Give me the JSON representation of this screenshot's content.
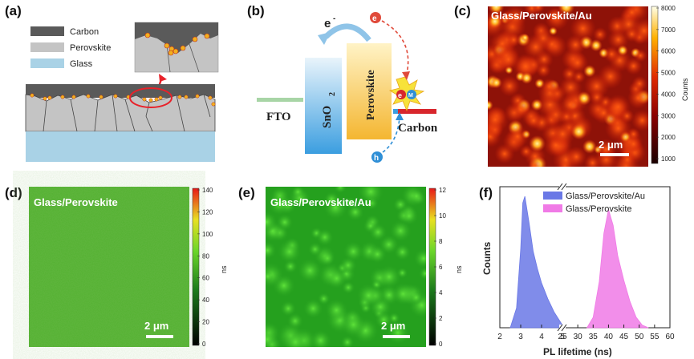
{
  "figure": {
    "panel_labels": [
      "(a)",
      "(b)",
      "(c)",
      "(d)",
      "(e)",
      "(f)"
    ]
  },
  "panel_a": {
    "legend": [
      "Carbon",
      "Perovskite",
      "Glass"
    ],
    "colors": {
      "carbon": "#5a5a5a",
      "perovskite": "#c4c4c4",
      "glass": "#a9d2e6",
      "highlight": "#e8222a"
    }
  },
  "panel_b": {
    "electron_label": "e",
    "electron_sup": "-",
    "fto": "FTO",
    "sno2": "SnO",
    "sno2_sub": "2",
    "perovskite": "Perovskite",
    "carbon": "Carbon",
    "e_particle": "e",
    "h_particle": "h",
    "m_particle": "M"
  },
  "panel_c": {
    "title": "Glass/Perovskite/Au",
    "scalebar": "2 μm",
    "colorbar_ticks": [
      "8000",
      "7000",
      "6000",
      "5000",
      "4000",
      "3000",
      "2000",
      "1000"
    ],
    "colorbar_label": "Counts"
  },
  "panel_d": {
    "title": "Glass/Perovskite",
    "scalebar": "2 μm",
    "colorbar_ticks": [
      "140",
      "120",
      "100",
      "80",
      "60",
      "40",
      "20",
      "0"
    ],
    "colorbar_label": "ns"
  },
  "panel_e": {
    "title": "Glass/Perovskite/Au",
    "scalebar": "2 μm",
    "colorbar_ticks": [
      "12",
      "10",
      "8",
      "6",
      "4",
      "2",
      "0"
    ],
    "colorbar_label": "ns"
  },
  "chart_data": {
    "type": "area",
    "title": "",
    "xlabel": "PL lifetime (ns)",
    "ylabel": "Counts",
    "x_ticks": [
      "2",
      "3",
      "4",
      "5",
      "25",
      "30",
      "35",
      "40",
      "45",
      "50",
      "55",
      "60"
    ],
    "axis_break": "between 5 and 25 ns",
    "legend": [
      "Glass/Perovskite/Au",
      "Glass/Perovskite"
    ],
    "series": [
      {
        "name": "Glass/Perovskite/Au",
        "color": "#6a78e6",
        "peak_ns": 3.2,
        "x": [
          2.5,
          2.8,
          3.0,
          3.1,
          3.2,
          3.4,
          3.6,
          3.8,
          4.0,
          4.3,
          4.6,
          5.0
        ],
        "values": [
          0,
          0.15,
          0.6,
          0.95,
          1.0,
          0.8,
          0.58,
          0.45,
          0.34,
          0.22,
          0.12,
          0.02
        ]
      },
      {
        "name": "Glass/Perovskite",
        "color": "#f07ae6",
        "peak_ns": 40,
        "x": [
          33,
          35,
          37,
          38.5,
          40,
          41.5,
          43,
          45,
          47,
          49,
          51,
          53
        ],
        "values": [
          0,
          0.08,
          0.35,
          0.72,
          0.9,
          0.78,
          0.55,
          0.36,
          0.2,
          0.08,
          0.02,
          0
        ]
      }
    ]
  }
}
